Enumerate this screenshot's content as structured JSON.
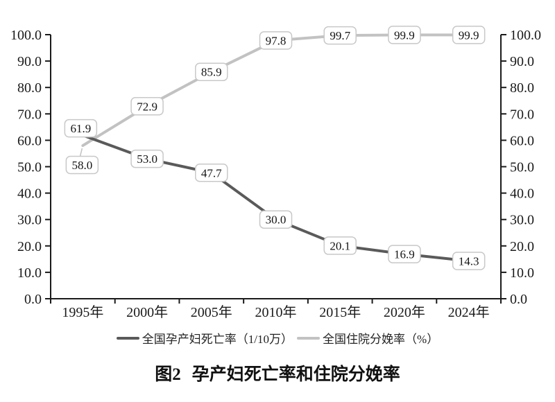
{
  "figure": {
    "number": "图2",
    "title": "孕产妇死亡率和住院分娩率"
  },
  "chart_data": {
    "type": "line",
    "title": "图2 孕产妇死亡率和住院分娩率",
    "categories": [
      "1995年",
      "2000年",
      "2005年",
      "2010年",
      "2015年",
      "2020年",
      "2024年"
    ],
    "series": [
      {
        "name": "全国孕产妇死亡率（1/10万）",
        "values": [
          61.9,
          53.0,
          47.7,
          30.0,
          20.1,
          16.9,
          14.3
        ],
        "data_labels": [
          "61.9",
          "53.0",
          "47.7",
          "30.0",
          "20.1",
          "16.9",
          "14.3"
        ],
        "color": "#5a5a5a"
      },
      {
        "name": "全国住院分娩率（%）",
        "values": [
          58.0,
          72.9,
          85.9,
          97.8,
          99.7,
          99.9,
          99.9
        ],
        "data_labels": [
          "58.0",
          "72.9",
          "85.9",
          "97.8",
          "99.7",
          "99.9",
          "99.9"
        ],
        "color": "#c2c2c2"
      }
    ],
    "ylim": [
      0,
      100
    ],
    "ytick_step": 10,
    "yticks": [
      "0.0",
      "10.0",
      "20.0",
      "30.0",
      "40.0",
      "50.0",
      "60.0",
      "70.0",
      "80.0",
      "90.0",
      "100.0"
    ],
    "dual_y_axis": true,
    "grid": false,
    "legend_position": "bottom",
    "data_labels_boxed": true,
    "axis_color": "#1a1a1a",
    "label_box": {
      "fill": "#ffffff",
      "border": "#c8c8c8"
    }
  }
}
